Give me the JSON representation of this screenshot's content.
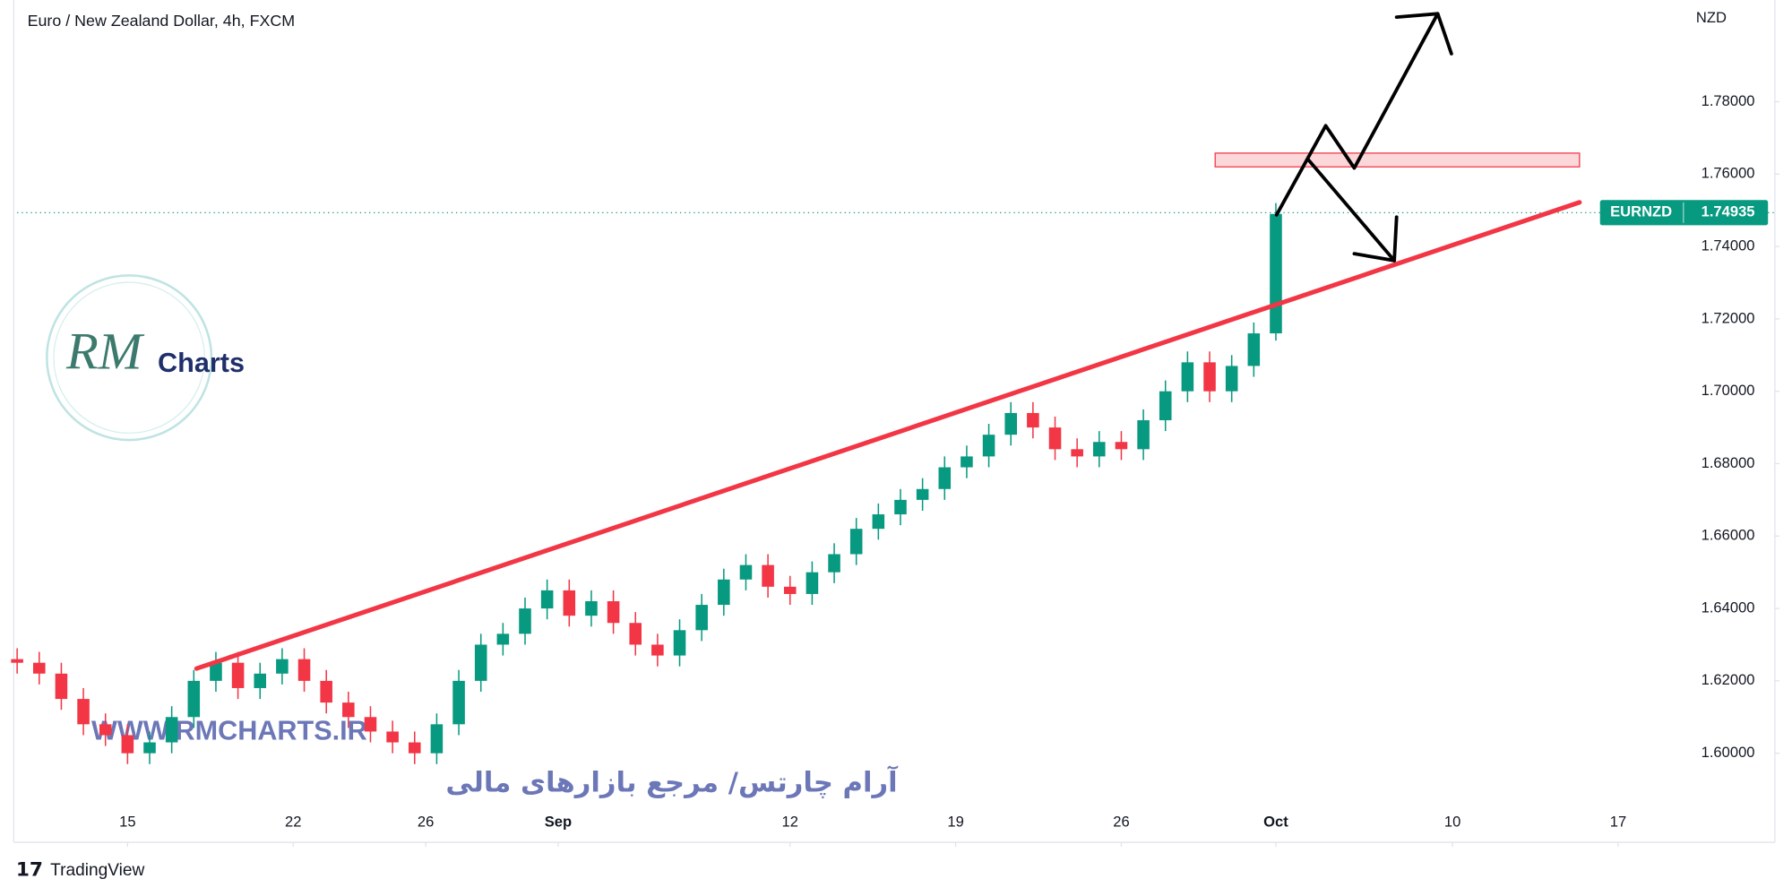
{
  "chart_data": {
    "type": "candlestick",
    "title": "Euro / New Zealand Dollar, 4h, FXCM",
    "y_axis_label": "NZD",
    "x": [
      0,
      4,
      8,
      12,
      16,
      20,
      24,
      28,
      32,
      36,
      40,
      44,
      48,
      52,
      56,
      60,
      64,
      68,
      72,
      76,
      80,
      84,
      88,
      92,
      96,
      100,
      104,
      108,
      112,
      116,
      120,
      124,
      128,
      132,
      136,
      140,
      144,
      148,
      152,
      156,
      160,
      164,
      168,
      172,
      176,
      180,
      184,
      188,
      192,
      196,
      200,
      204,
      208,
      212,
      216,
      220,
      224,
      228
    ],
    "open": [
      1.626,
      1.625,
      1.622,
      1.615,
      1.608,
      1.605,
      1.6,
      1.603,
      1.61,
      1.62,
      1.625,
      1.618,
      1.622,
      1.626,
      1.62,
      1.614,
      1.61,
      1.606,
      1.603,
      1.6,
      1.608,
      1.62,
      1.63,
      1.633,
      1.64,
      1.645,
      1.638,
      1.642,
      1.636,
      1.63,
      1.627,
      1.634,
      1.641,
      1.648,
      1.652,
      1.646,
      1.644,
      1.65,
      1.655,
      1.662,
      1.666,
      1.67,
      1.673,
      1.679,
      1.682,
      1.688,
      1.694,
      1.69,
      1.684,
      1.682,
      1.686,
      1.684,
      1.692,
      1.7,
      1.708,
      1.7,
      1.707,
      1.716
    ],
    "high": [
      1.629,
      1.628,
      1.625,
      1.618,
      1.611,
      1.608,
      1.606,
      1.613,
      1.623,
      1.628,
      1.628,
      1.625,
      1.629,
      1.629,
      1.623,
      1.617,
      1.613,
      1.609,
      1.606,
      1.611,
      1.623,
      1.633,
      1.636,
      1.643,
      1.648,
      1.648,
      1.645,
      1.645,
      1.639,
      1.633,
      1.637,
      1.644,
      1.651,
      1.655,
      1.655,
      1.649,
      1.653,
      1.658,
      1.665,
      1.669,
      1.673,
      1.676,
      1.682,
      1.685,
      1.691,
      1.697,
      1.697,
      1.693,
      1.687,
      1.689,
      1.689,
      1.695,
      1.703,
      1.711,
      1.711,
      1.71,
      1.719,
      1.752
    ],
    "low": [
      1.622,
      1.619,
      1.612,
      1.605,
      1.602,
      1.597,
      1.597,
      1.6,
      1.607,
      1.617,
      1.615,
      1.615,
      1.619,
      1.617,
      1.611,
      1.607,
      1.603,
      1.6,
      1.597,
      1.597,
      1.605,
      1.617,
      1.627,
      1.63,
      1.637,
      1.635,
      1.635,
      1.633,
      1.627,
      1.624,
      1.624,
      1.631,
      1.638,
      1.645,
      1.643,
      1.641,
      1.641,
      1.647,
      1.652,
      1.659,
      1.663,
      1.667,
      1.67,
      1.676,
      1.679,
      1.685,
      1.687,
      1.681,
      1.679,
      1.679,
      1.681,
      1.681,
      1.689,
      1.697,
      1.697,
      1.697,
      1.704,
      1.714
    ],
    "close": [
      1.625,
      1.622,
      1.615,
      1.608,
      1.605,
      1.6,
      1.603,
      1.61,
      1.62,
      1.625,
      1.618,
      1.622,
      1.626,
      1.62,
      1.614,
      1.61,
      1.606,
      1.603,
      1.6,
      1.608,
      1.62,
      1.63,
      1.633,
      1.64,
      1.645,
      1.638,
      1.642,
      1.636,
      1.63,
      1.627,
      1.634,
      1.641,
      1.648,
      1.652,
      1.646,
      1.644,
      1.65,
      1.655,
      1.662,
      1.666,
      1.67,
      1.673,
      1.679,
      1.682,
      1.688,
      1.694,
      1.69,
      1.684,
      1.682,
      1.686,
      1.684,
      1.692,
      1.7,
      1.708,
      1.7,
      1.707,
      1.716,
      1.749
    ],
    "up_color": "#089981",
    "down_color": "#f23645",
    "xlim": [
      0,
      301.2
    ],
    "xticks": [
      {
        "value": 20,
        "label": "15"
      },
      {
        "value": 50,
        "label": "22"
      },
      {
        "value": 74,
        "label": "26"
      },
      {
        "value": 98,
        "label": "Sep"
      },
      {
        "value": 140,
        "label": "12"
      },
      {
        "value": 170,
        "label": "19"
      },
      {
        "value": 200,
        "label": "26"
      },
      {
        "value": 228,
        "label": "Oct"
      },
      {
        "value": 260,
        "label": "10"
      },
      {
        "value": 290,
        "label": "17"
      }
    ],
    "ylim": [
      1.5754,
      1.8081
    ],
    "yticks": [
      {
        "value": 1.6,
        "label": "1.60000"
      },
      {
        "value": 1.62,
        "label": "1.62000"
      },
      {
        "value": 1.64,
        "label": "1.64000"
      },
      {
        "value": 1.66,
        "label": "1.66000"
      },
      {
        "value": 1.68,
        "label": "1.68000"
      },
      {
        "value": 1.7,
        "label": "1.70000"
      },
      {
        "value": 1.72,
        "label": "1.72000"
      },
      {
        "value": 1.74,
        "label": "1.74000"
      },
      {
        "value": 1.76,
        "label": "1.76000"
      },
      {
        "value": 1.78,
        "label": "1.78000"
      }
    ],
    "grid": false,
    "last_price": {
      "name": "EURNZD",
      "value": 1.74935,
      "color": "#089981"
    },
    "trendline": {
      "x": [
        32.5,
        283
      ],
      "values": [
        1.6234,
        1.7522
      ],
      "color": "#f23645"
    },
    "zone": {
      "x": [
        217,
        283
      ],
      "values": [
        1.762,
        1.7658
      ],
      "color": "#f23645"
    }
  },
  "watermark": {
    "initials": "RM",
    "brand": "Charts",
    "url": "WWW.RMCHARTS.IR",
    "tagline": "آرام چارتس/ مرجع بازارهای مالی"
  },
  "footer": {
    "brand": "TradingView"
  }
}
